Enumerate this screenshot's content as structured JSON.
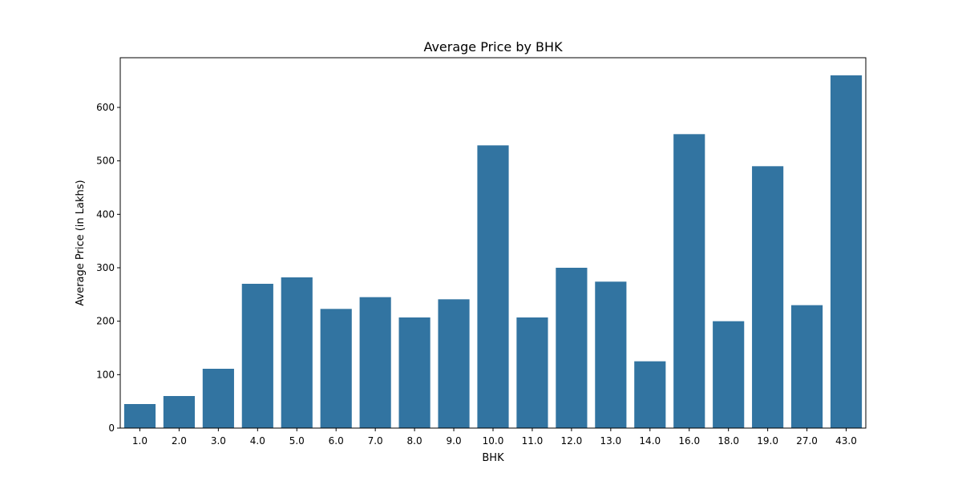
{
  "chart_data": {
    "type": "bar",
    "title": "Average Price by BHK",
    "xlabel": "BHK",
    "ylabel": "Average Price (in Lakhs)",
    "categories": [
      "1.0",
      "2.0",
      "3.0",
      "4.0",
      "5.0",
      "6.0",
      "7.0",
      "8.0",
      "9.0",
      "10.0",
      "11.0",
      "12.0",
      "13.0",
      "14.0",
      "16.0",
      "18.0",
      "19.0",
      "27.0",
      "43.0"
    ],
    "values": [
      45,
      60,
      111,
      270,
      282,
      223,
      245,
      207,
      241,
      529,
      207,
      300,
      274,
      125,
      550,
      200,
      490,
      230,
      660
    ],
    "ylim": [
      0,
      693
    ],
    "yticks": [
      0,
      100,
      200,
      300,
      400,
      500,
      600
    ],
    "bar_color": "#3274a1",
    "grid": false,
    "legend": "none"
  }
}
